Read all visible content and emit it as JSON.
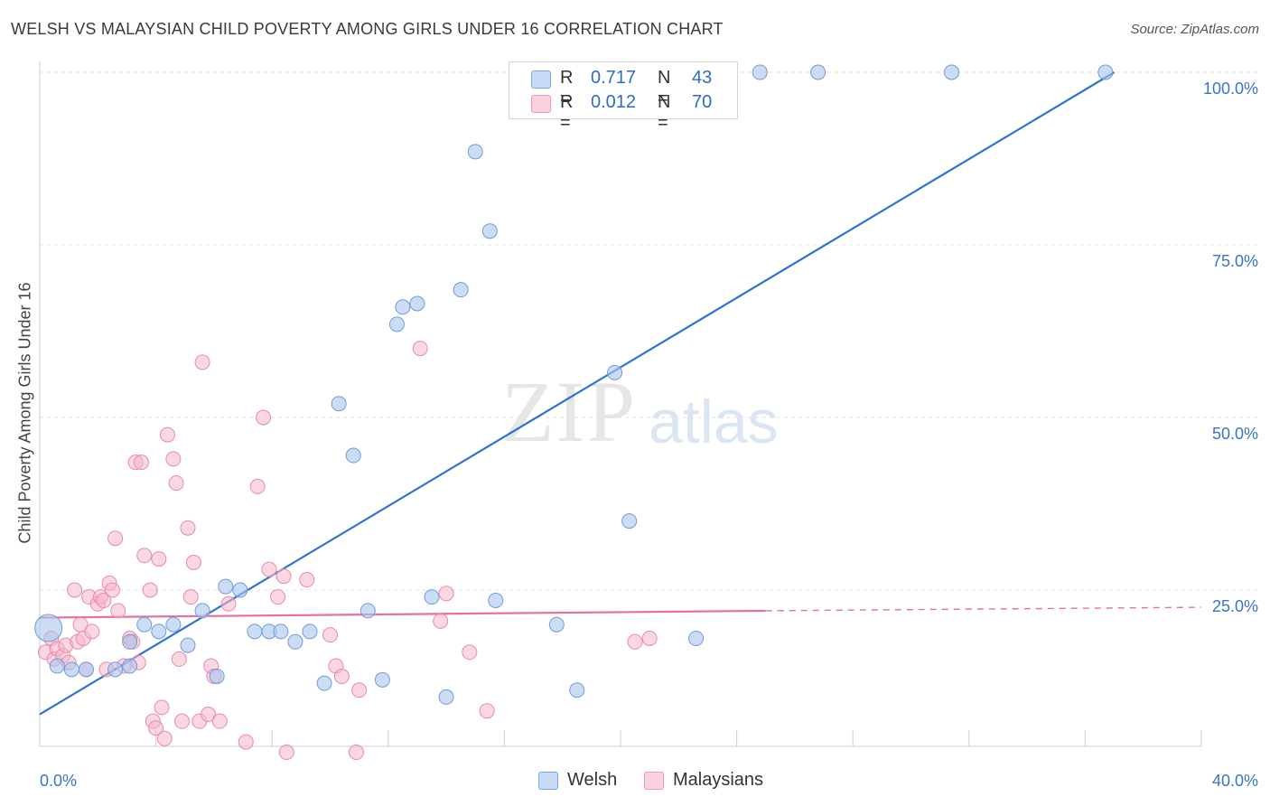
{
  "header": {
    "title": "WELSH VS MALAYSIAN CHILD POVERTY AMONG GIRLS UNDER 16 CORRELATION CHART",
    "source": "Source: ZipAtlas.com"
  },
  "watermark": {
    "zip": "ZIP",
    "atlas": "atlas"
  },
  "legend": {
    "rows": [
      {
        "r_label": "R =",
        "r_value": "0.717",
        "n_label": "N =",
        "n_value": "43",
        "color": "#a9c6ee"
      },
      {
        "r_label": "R =",
        "r_value": "0.012",
        "n_label": "N =",
        "n_value": "70",
        "color": "#f6b6c9"
      }
    ]
  },
  "bottom_legend": {
    "welsh": "Welsh",
    "malaysians": "Malaysians"
  },
  "colors": {
    "welsh_fill": "#a9c6ee",
    "welsh_stroke": "#6f9bdc",
    "welsh_line": "#2f74d0",
    "malaysian_fill": "#f6b6c9",
    "malaysian_stroke": "#e98aa8",
    "malaysian_line": "#e8709a",
    "axis_label": "#3b73c9",
    "grid": "#e3e3e3"
  },
  "chart_data": {
    "type": "scatter",
    "title": "WELSH VS MALAYSIAN CHILD POVERTY AMONG GIRLS UNDER 16 CORRELATION CHART",
    "xlabel": "",
    "ylabel": "Child Poverty Among Girls Under 16",
    "xlim": [
      0,
      40
    ],
    "ylim": [
      0,
      102
    ],
    "x_tick_labels": [
      "0.0%",
      "40.0%"
    ],
    "y_tick_labels": [
      "25.0%",
      "50.0%",
      "75.0%",
      "100.0%"
    ],
    "y_ticks": [
      25,
      50,
      75,
      100
    ],
    "grid": true,
    "legend_position": "top-center",
    "series": [
      {
        "name": "Welsh",
        "r": 0.717,
        "n": 43,
        "trend": {
          "x": [
            0,
            37
          ],
          "y": [
            7,
            100
          ]
        },
        "points": [
          [
            0.3,
            19.5
          ],
          [
            0.6,
            14
          ],
          [
            1.1,
            13.5
          ],
          [
            1.6,
            13.5
          ],
          [
            2.6,
            13.5
          ],
          [
            3.1,
            14
          ],
          [
            3.1,
            17.5
          ],
          [
            3.6,
            20
          ],
          [
            4.1,
            19
          ],
          [
            4.6,
            20
          ],
          [
            5.1,
            17
          ],
          [
            5.6,
            22
          ],
          [
            6.1,
            12.5
          ],
          [
            6.4,
            25.5
          ],
          [
            6.9,
            25
          ],
          [
            7.4,
            19
          ],
          [
            7.9,
            19
          ],
          [
            8.3,
            19
          ],
          [
            8.8,
            17.5
          ],
          [
            9.3,
            19
          ],
          [
            9.8,
            11.5
          ],
          [
            10.3,
            52
          ],
          [
            10.8,
            44.5
          ],
          [
            11.3,
            22
          ],
          [
            11.8,
            12
          ],
          [
            12.3,
            63.5
          ],
          [
            12.5,
            66
          ],
          [
            13.0,
            66.5
          ],
          [
            13.5,
            24
          ],
          [
            14.0,
            9.5
          ],
          [
            14.5,
            68.5
          ],
          [
            15.0,
            88.5
          ],
          [
            15.5,
            77
          ],
          [
            15.7,
            23.5
          ],
          [
            17.8,
            20
          ],
          [
            18.5,
            10.5
          ],
          [
            19.8,
            56.5
          ],
          [
            20.3,
            35
          ],
          [
            22.6,
            18
          ],
          [
            24.8,
            100
          ],
          [
            26.8,
            100
          ],
          [
            31.4,
            100
          ],
          [
            36.7,
            100
          ]
        ]
      },
      {
        "name": "Malaysians",
        "r": 0.012,
        "n": 70,
        "trend": {
          "x": [
            0,
            25
          ],
          "y": [
            21,
            22
          ]
        },
        "trend_dashed": {
          "x": [
            25,
            40
          ],
          "y": [
            22,
            22.5
          ]
        },
        "points": [
          [
            0.2,
            16
          ],
          [
            0.4,
            18
          ],
          [
            0.5,
            15
          ],
          [
            0.6,
            16.5
          ],
          [
            0.8,
            15.5
          ],
          [
            0.9,
            17
          ],
          [
            1.0,
            14.5
          ],
          [
            1.2,
            25
          ],
          [
            1.3,
            17.5
          ],
          [
            1.4,
            20
          ],
          [
            1.5,
            18
          ],
          [
            1.6,
            13.5
          ],
          [
            1.7,
            24
          ],
          [
            1.8,
            19
          ],
          [
            2.0,
            23
          ],
          [
            2.1,
            24
          ],
          [
            2.2,
            23.5
          ],
          [
            2.3,
            13.5
          ],
          [
            2.4,
            26
          ],
          [
            2.5,
            25
          ],
          [
            2.6,
            32.5
          ],
          [
            2.7,
            22
          ],
          [
            2.9,
            14
          ],
          [
            3.1,
            18
          ],
          [
            3.2,
            17.5
          ],
          [
            3.3,
            43.5
          ],
          [
            3.4,
            14.5
          ],
          [
            3.5,
            43.5
          ],
          [
            3.6,
            30
          ],
          [
            3.8,
            25
          ],
          [
            3.9,
            6
          ],
          [
            4.0,
            5
          ],
          [
            4.1,
            29.5
          ],
          [
            4.2,
            8
          ],
          [
            4.3,
            3.5
          ],
          [
            4.4,
            47.5
          ],
          [
            4.6,
            44
          ],
          [
            4.7,
            40.5
          ],
          [
            4.8,
            15
          ],
          [
            4.9,
            6
          ],
          [
            5.1,
            34
          ],
          [
            5.2,
            24
          ],
          [
            5.3,
            29
          ],
          [
            5.5,
            6
          ],
          [
            5.6,
            58
          ],
          [
            5.8,
            7
          ],
          [
            5.9,
            14
          ],
          [
            6.0,
            12.5
          ],
          [
            6.2,
            6
          ],
          [
            6.5,
            23
          ],
          [
            7.1,
            3
          ],
          [
            7.5,
            40
          ],
          [
            7.7,
            50
          ],
          [
            7.9,
            28
          ],
          [
            8.2,
            24
          ],
          [
            8.4,
            27
          ],
          [
            8.5,
            1.5
          ],
          [
            9.2,
            26.5
          ],
          [
            10.0,
            18.5
          ],
          [
            10.2,
            14
          ],
          [
            10.4,
            12.5
          ],
          [
            10.9,
            1.5
          ],
          [
            11.0,
            10.5
          ],
          [
            13.1,
            60
          ],
          [
            13.8,
            20.5
          ],
          [
            14.0,
            24.5
          ],
          [
            14.8,
            16
          ],
          [
            15.4,
            7.5
          ],
          [
            20.5,
            17.5
          ],
          [
            21.0,
            18
          ]
        ]
      }
    ]
  }
}
